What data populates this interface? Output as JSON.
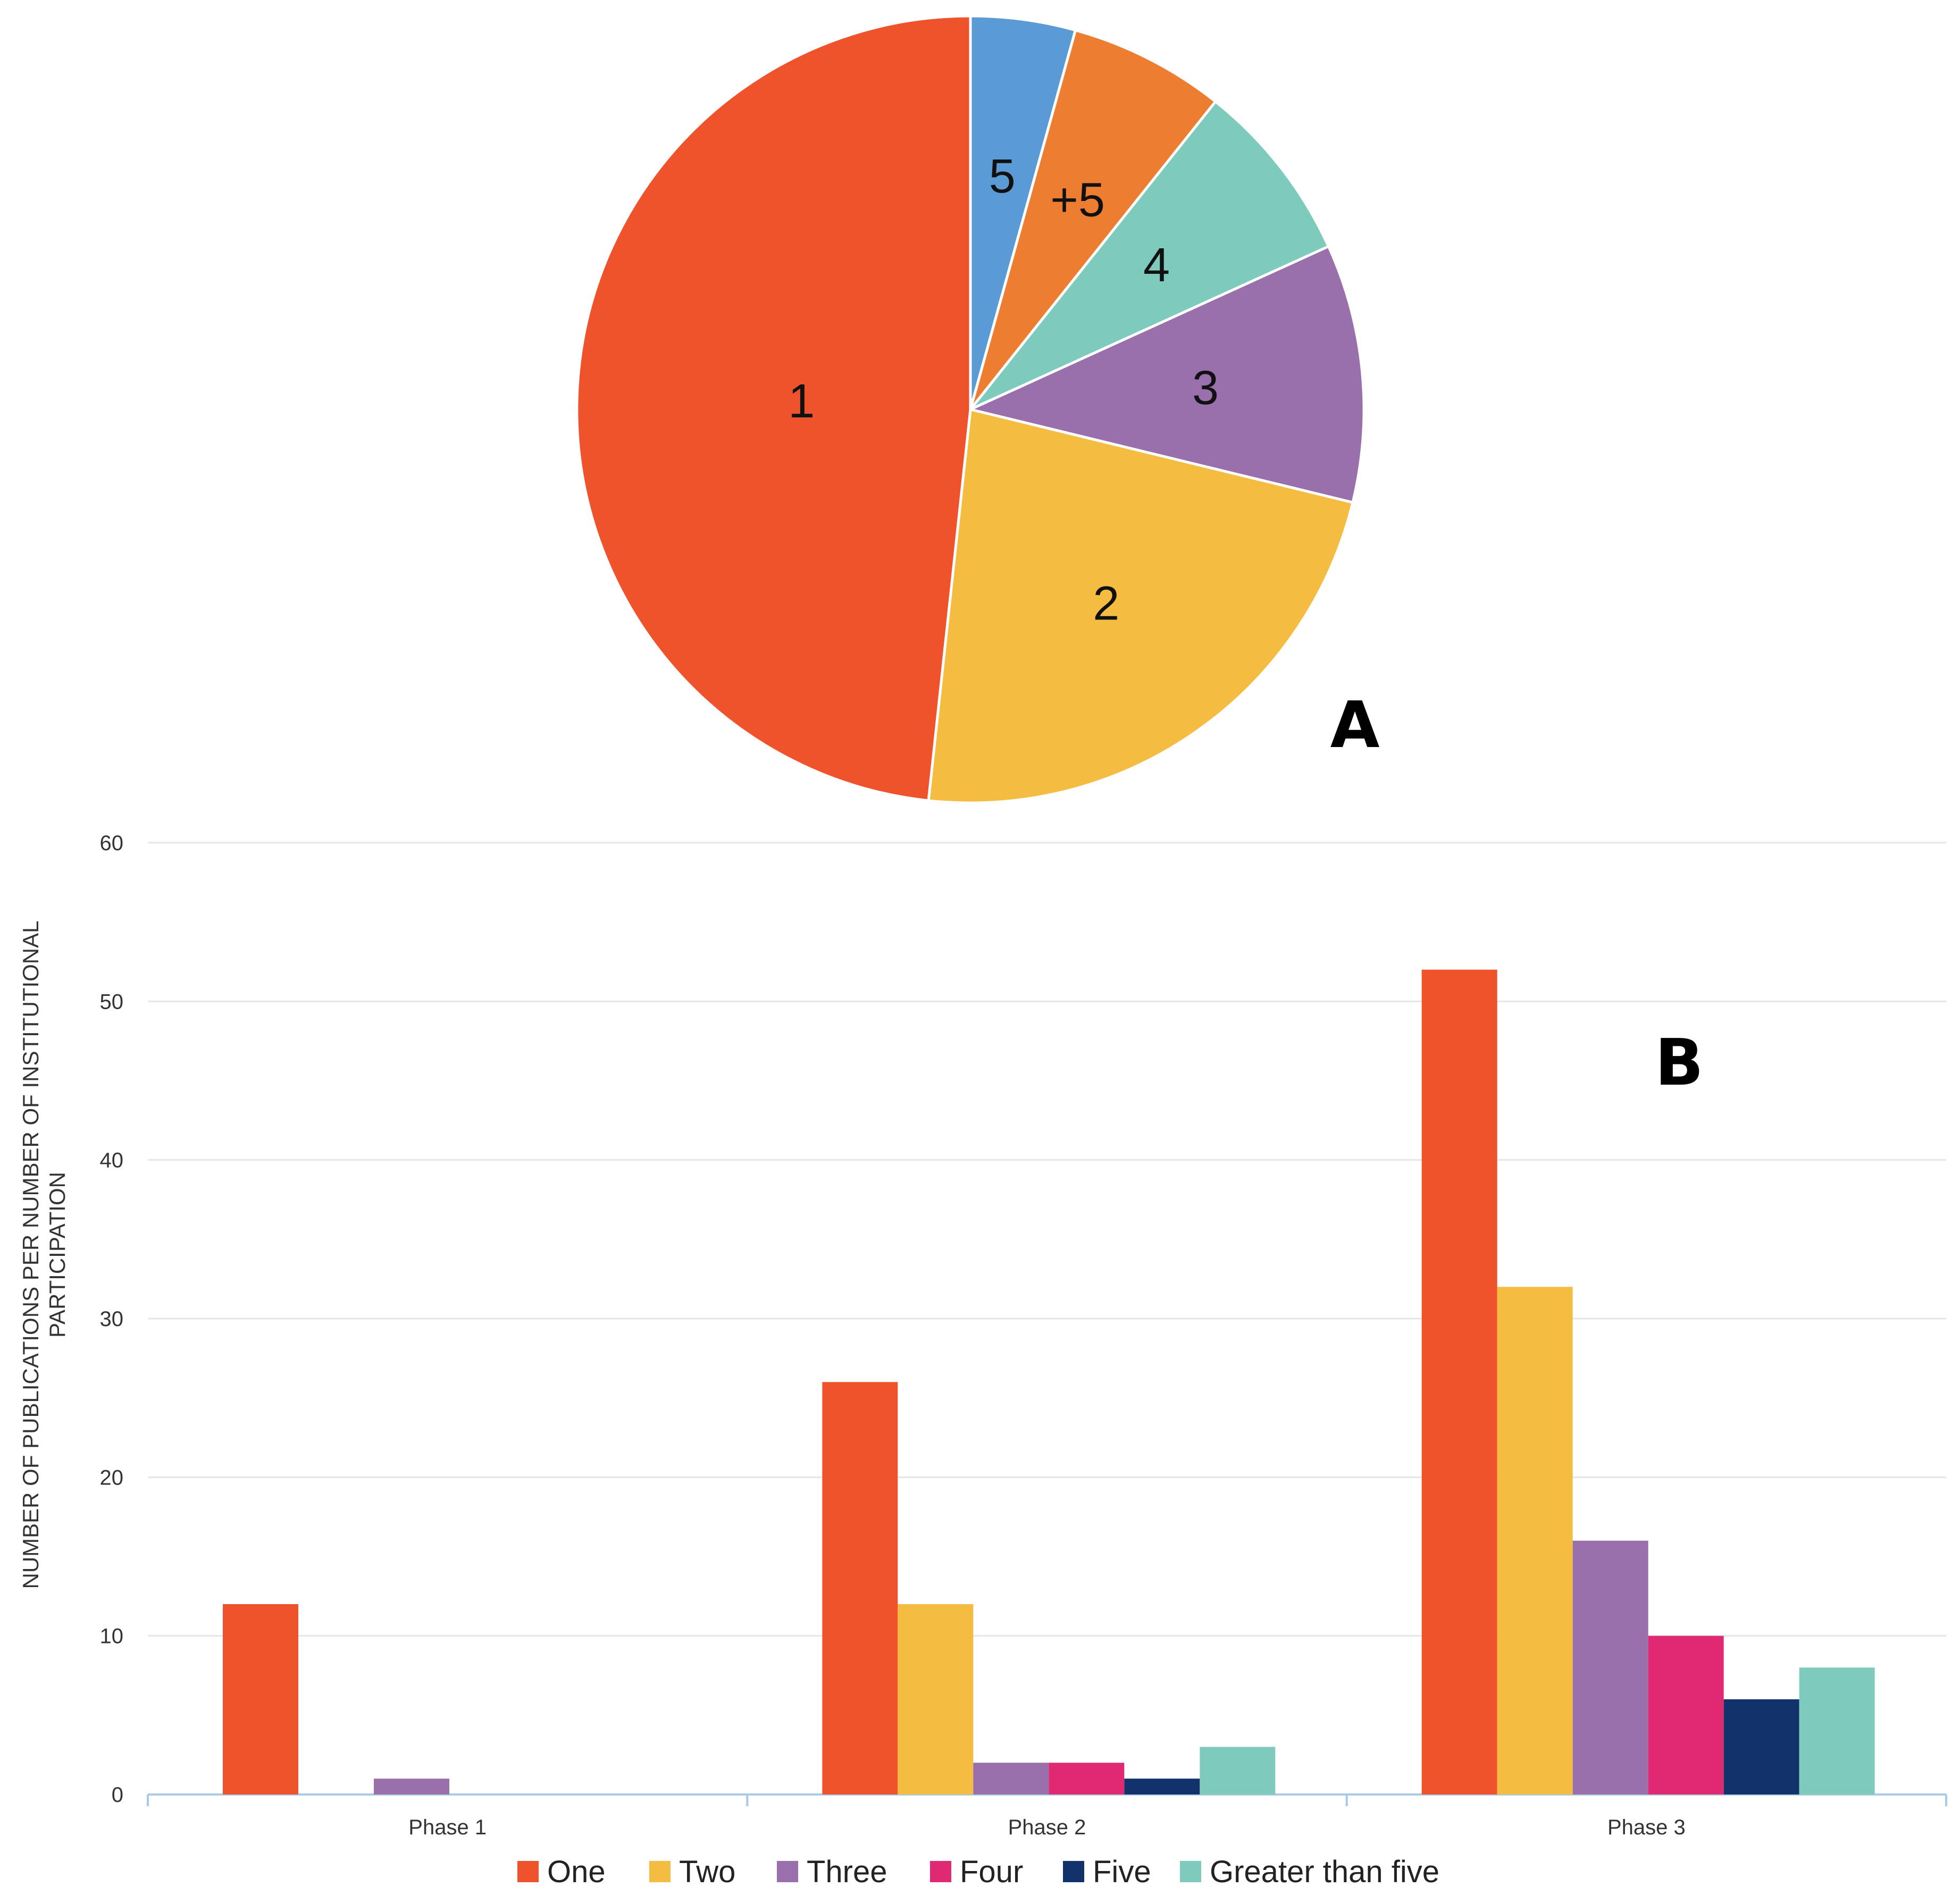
{
  "chart_data": [
    {
      "type": "pie",
      "panel": "A",
      "slices": [
        {
          "label": "5",
          "value": 4.3,
          "color": "#5b9bd5"
        },
        {
          "label": "+5",
          "value": 6.4,
          "color": "#ed7d31"
        },
        {
          "label": "4",
          "value": 7.5,
          "color": "#7ecbbd"
        },
        {
          "label": "3",
          "value": 10.6,
          "color": "#9a70ac"
        },
        {
          "label": "2",
          "value": 22.9,
          "color": "#f4bd42"
        },
        {
          "label": "1",
          "value": 48.3,
          "color": "#ef532b"
        }
      ]
    },
    {
      "type": "bar",
      "panel": "B",
      "categories": [
        "Phase 1",
        "Phase 2",
        "Phase 3"
      ],
      "series": [
        {
          "name": "One",
          "color": "#ef532b",
          "values": [
            12,
            26,
            52
          ]
        },
        {
          "name": "Two",
          "color": "#f4bd42",
          "values": [
            0,
            12,
            32
          ]
        },
        {
          "name": "Three",
          "color": "#9a70ac",
          "values": [
            1,
            2,
            16
          ]
        },
        {
          "name": "Four",
          "color": "#df2a73",
          "values": [
            0,
            2,
            10
          ]
        },
        {
          "name": "Five",
          "color": "#11326a",
          "values": [
            0,
            1,
            6
          ]
        },
        {
          "name": "Greater than five",
          "color": "#7ecbbd",
          "values": [
            0,
            3,
            8
          ]
        }
      ],
      "ylabel": [
        "NUMBER OF PUBLICATIONS PER NUMBER OF INSTITUTIONAL",
        "PARTICIPATION"
      ],
      "ylim": [
        0,
        60
      ],
      "yticks": [
        0,
        10,
        20,
        30,
        40,
        50,
        60
      ],
      "grid": true,
      "legend": "bottom-center"
    }
  ]
}
